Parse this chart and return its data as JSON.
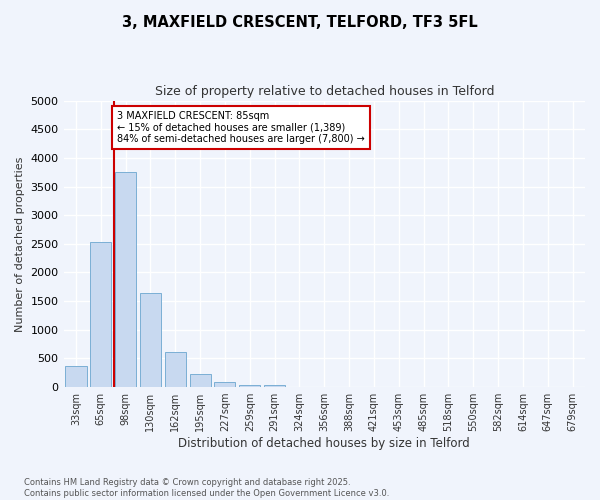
{
  "title_line1": "3, MAXFIELD CRESCENT, TELFORD, TF3 5FL",
  "title_line2": "Size of property relative to detached houses in Telford",
  "xlabel": "Distribution of detached houses by size in Telford",
  "ylabel": "Number of detached properties",
  "categories": [
    "33sqm",
    "65sqm",
    "98sqm",
    "130sqm",
    "162sqm",
    "195sqm",
    "227sqm",
    "259sqm",
    "291sqm",
    "324sqm",
    "356sqm",
    "388sqm",
    "421sqm",
    "453sqm",
    "485sqm",
    "518sqm",
    "550sqm",
    "582sqm",
    "614sqm",
    "647sqm",
    "679sqm"
  ],
  "values": [
    370,
    2530,
    3760,
    1650,
    620,
    220,
    95,
    45,
    45,
    0,
    0,
    0,
    0,
    0,
    0,
    0,
    0,
    0,
    0,
    0,
    0
  ],
  "bar_color": "#c8d9f0",
  "bar_edge_color": "#7bafd4",
  "vline_x": 1.55,
  "vline_color": "#cc0000",
  "ylim": [
    0,
    5000
  ],
  "yticks": [
    0,
    500,
    1000,
    1500,
    2000,
    2500,
    3000,
    3500,
    4000,
    4500,
    5000
  ],
  "annotation_text": "3 MAXFIELD CRESCENT: 85sqm\n← 15% of detached houses are smaller (1,389)\n84% of semi-detached houses are larger (7,800) →",
  "annotation_box_color": "#ffffff",
  "annotation_box_edge": "#cc0000",
  "footer_line1": "Contains HM Land Registry data © Crown copyright and database right 2025.",
  "footer_line2": "Contains public sector information licensed under the Open Government Licence v3.0.",
  "bg_color": "#f0f4fc",
  "plot_bg_color": "#f0f4fc"
}
